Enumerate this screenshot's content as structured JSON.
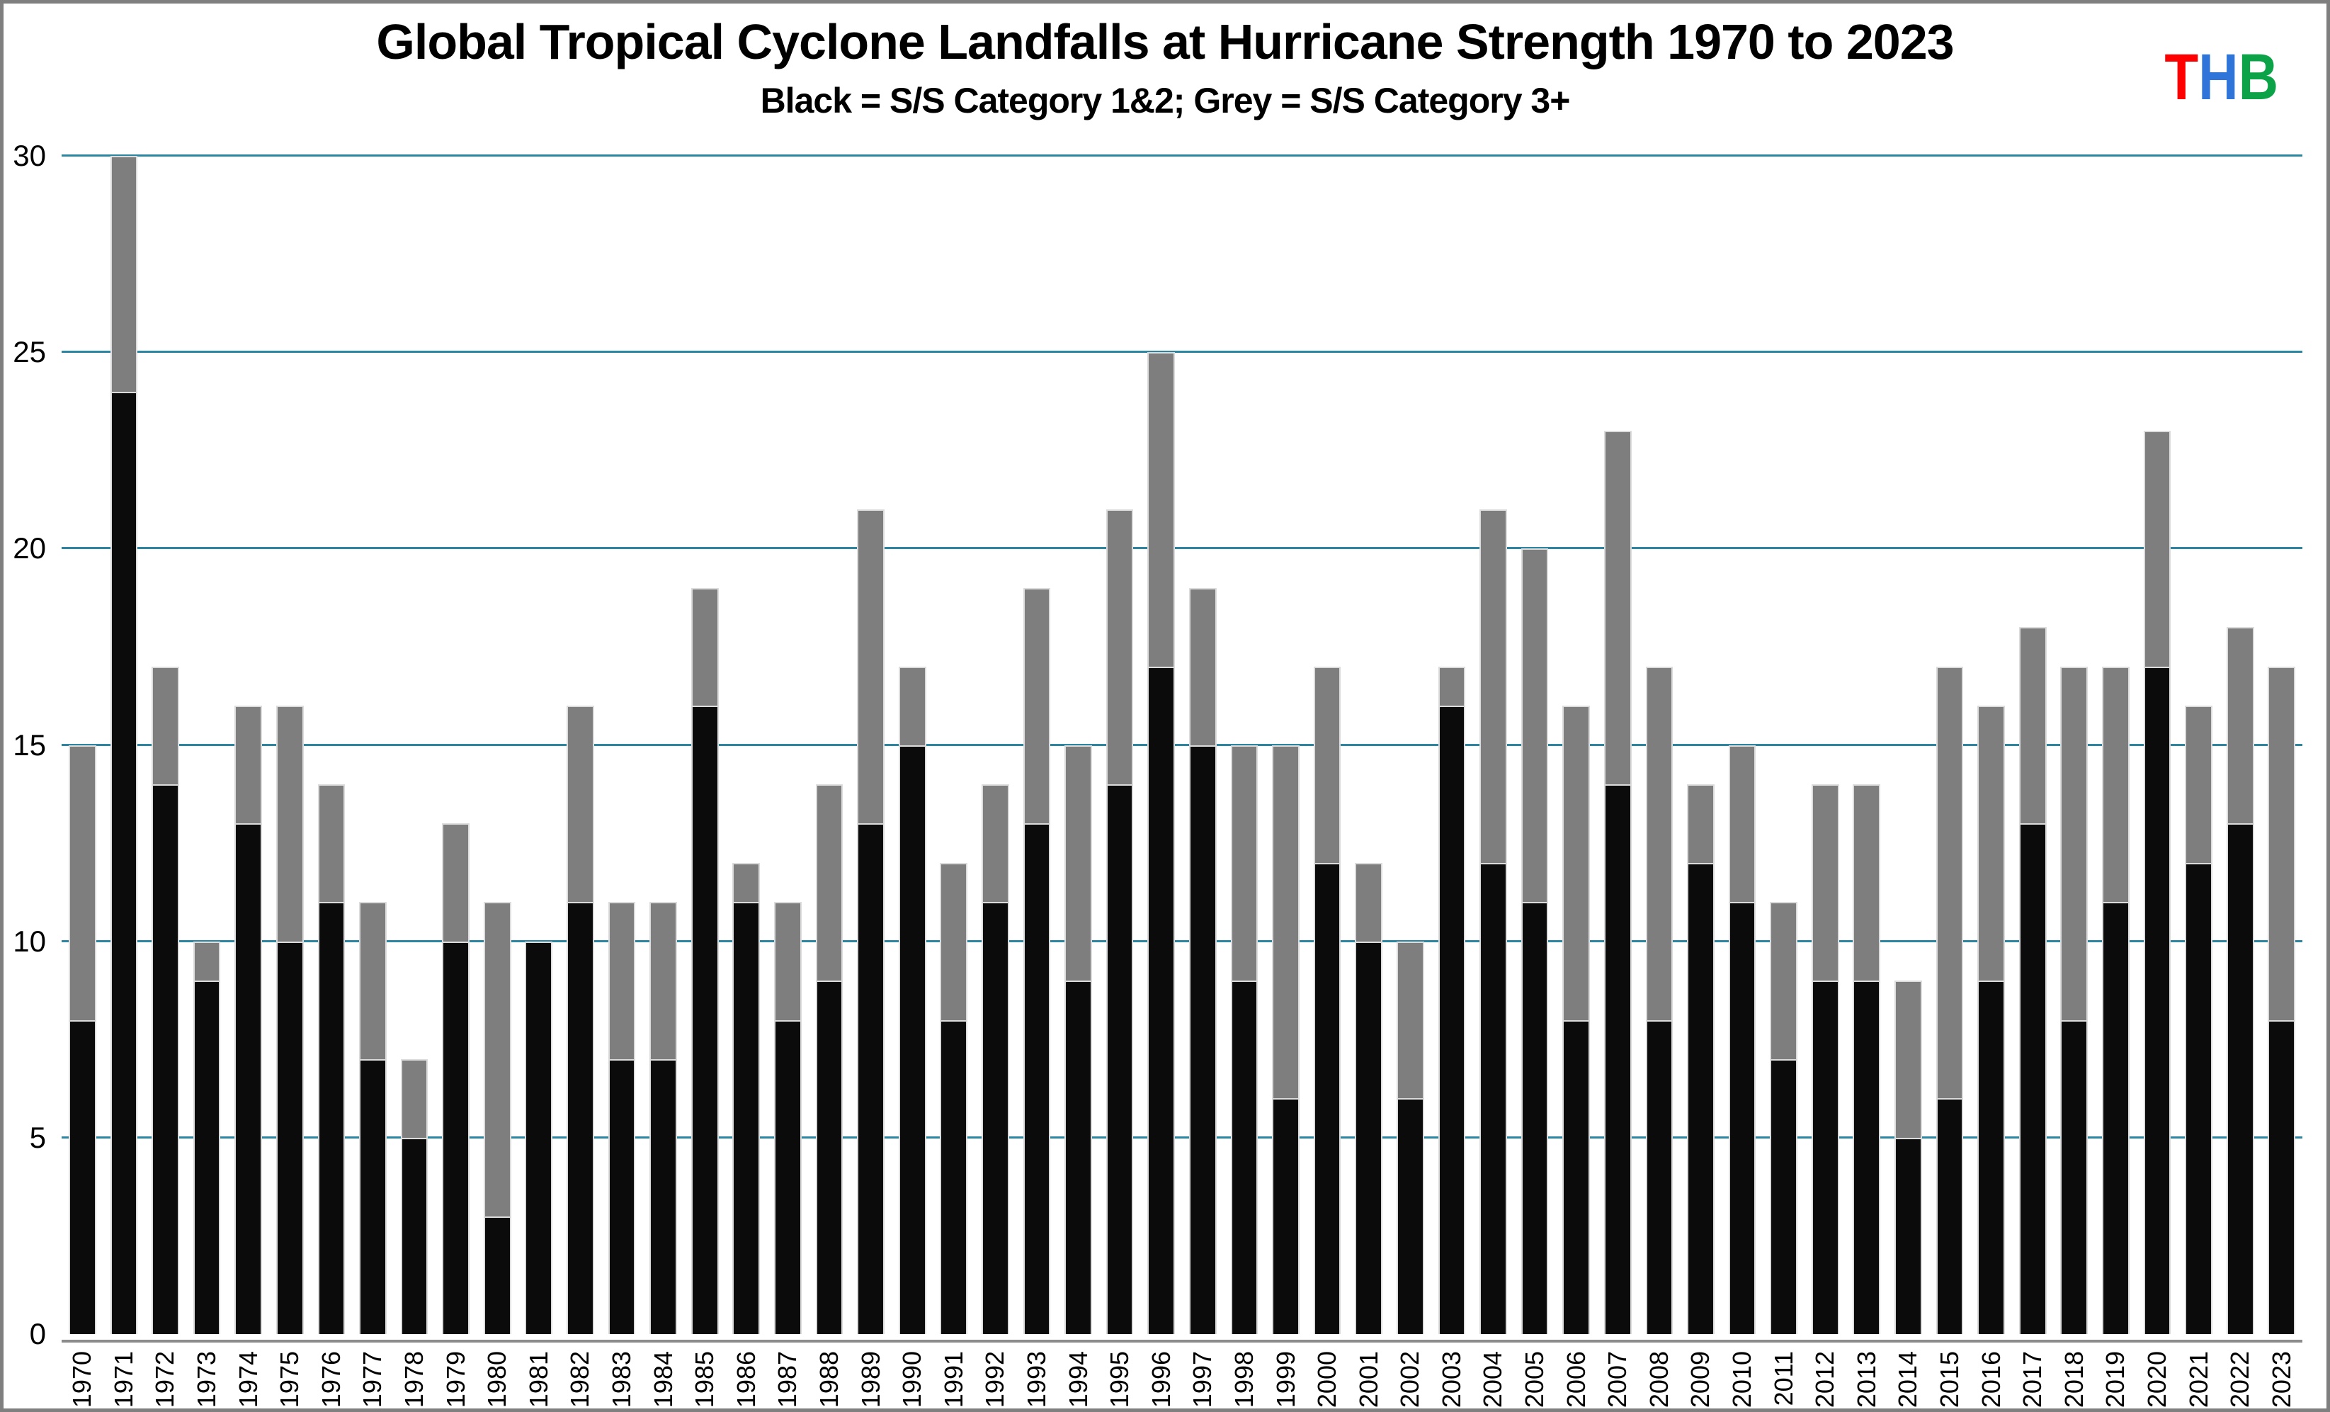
{
  "header": {
    "title": "Global Tropical Cyclone Landfalls at Hurricane Strength 1970 to 2023",
    "subtitle": "Black = S/S Category 1&2; Grey = S/S Category 3+"
  },
  "logo": {
    "letters": [
      {
        "char": "T",
        "color": "#FF0000"
      },
      {
        "char": "H",
        "color": "#2E74D9"
      },
      {
        "char": "B",
        "color": "#0CA348"
      }
    ]
  },
  "chart_data": {
    "type": "bar",
    "stacked": true,
    "title": "Global Tropical Cyclone Landfalls at Hurricane Strength 1970 to 2023",
    "subtitle": "Black = S/S Category 1&2; Grey = S/S Category 3+",
    "xlabel": "",
    "ylabel": "",
    "ylim": [
      0,
      30
    ],
    "yticks": [
      0,
      5,
      10,
      15,
      20,
      25,
      30
    ],
    "ytick_labels": [
      "0",
      "5",
      "10",
      "15",
      "20",
      "25",
      "30"
    ],
    "grid": true,
    "gridline_color": "#2C86A2",
    "axis_line_color": "#8C8C8C",
    "categories": [
      "1970",
      "1971",
      "1972",
      "1973",
      "1974",
      "1975",
      "1976",
      "1977",
      "1978",
      "1979",
      "1980",
      "1981",
      "1982",
      "1983",
      "1984",
      "1985",
      "1986",
      "1987",
      "1988",
      "1989",
      "1990",
      "1991",
      "1992",
      "1993",
      "1994",
      "1995",
      "1996",
      "1997",
      "1998",
      "1999",
      "2000",
      "2001",
      "2002",
      "2003",
      "2004",
      "2005",
      "2006",
      "2007",
      "2008",
      "2009",
      "2010",
      "2011",
      "2012",
      "2013",
      "2014",
      "2015",
      "2016",
      "2017",
      "2018",
      "2019",
      "2020",
      "2021",
      "2022",
      "2023"
    ],
    "series": [
      {
        "name": "S/S Category 1&2",
        "color": "#0B0B0B",
        "values": [
          8,
          24,
          14,
          9,
          13,
          10,
          11,
          7,
          5,
          10,
          3,
          10,
          11,
          7,
          7,
          16,
          11,
          8,
          9,
          13,
          15,
          8,
          11,
          13,
          9,
          14,
          17,
          15,
          9,
          6,
          12,
          10,
          6,
          16,
          12,
          11,
          8,
          14,
          8,
          12,
          11,
          7,
          9,
          9,
          5,
          6,
          9,
          13,
          8,
          11,
          17,
          12,
          13,
          8
        ]
      },
      {
        "name": "S/S Category 3+",
        "color": "#7E7E7E",
        "values": [
          7,
          6,
          3,
          1,
          3,
          6,
          3,
          4,
          2,
          3,
          8,
          0,
          5,
          4,
          4,
          3,
          1,
          3,
          5,
          8,
          2,
          4,
          3,
          6,
          6,
          7,
          8,
          4,
          6,
          9,
          5,
          2,
          4,
          1,
          9,
          9,
          8,
          9,
          9,
          2,
          4,
          4,
          5,
          5,
          4,
          11,
          7,
          5,
          9,
          6,
          6,
          4,
          5,
          9
        ]
      }
    ],
    "totals": [
      15,
      30,
      17,
      10,
      16,
      16,
      14,
      11,
      7,
      13,
      11,
      10,
      16,
      11,
      11,
      19,
      12,
      11,
      14,
      21,
      17,
      12,
      14,
      19,
      15,
      21,
      25,
      19,
      15,
      15,
      17,
      12,
      10,
      17,
      21,
      20,
      16,
      23,
      17,
      14,
      15,
      11,
      14,
      14,
      9,
      17,
      16,
      18,
      17,
      17,
      23,
      16,
      18,
      17
    ]
  }
}
